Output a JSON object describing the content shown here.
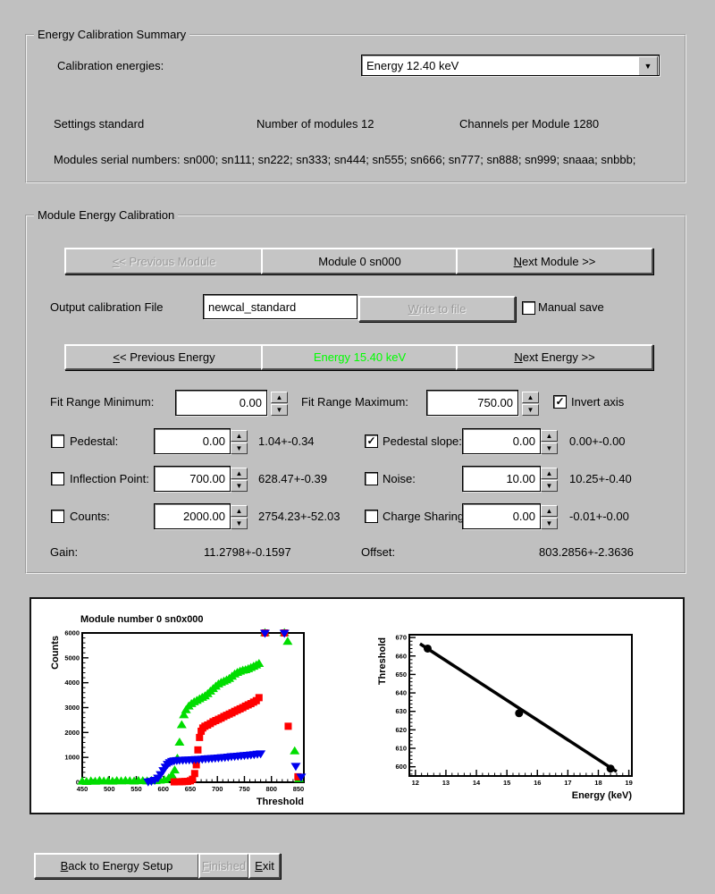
{
  "icons": {
    "up": "▲",
    "down": "▼",
    "dropdown": "▼"
  },
  "summary": {
    "title": "Energy Calibration Summary",
    "calibration_energies_label": "Calibration energies:",
    "energy_select_value": "Energy 12.40 keV",
    "settings_text": "Settings standard",
    "modules_text": "Number of modules 12",
    "channels_text": "Channels per Module 1280",
    "serials_text": "Modules serial numbers: sn000; sn111; sn222; sn333; sn444; sn555; sn666; sn777; sn888; sn999; snaaa; snbbb;"
  },
  "module_cal": {
    "title": "Module Energy Calibration",
    "prev_module": {
      "mn": "<",
      "rest": "< Previous Module"
    },
    "module_button": "Module 0 sn000",
    "next_module": {
      "mn": "N",
      "rest": "ext Module >>"
    },
    "output_file_label": "Output calibration File",
    "output_file_value": "newcal_standard",
    "write_button": {
      "mn": "W",
      "rest": "rite to file"
    },
    "manual_save_label": "Manual save",
    "manual_save_checked": "",
    "prev_energy": {
      "mn": "<",
      "rest": "< Previous Energy"
    },
    "energy_button": "Energy 15.40 keV",
    "energy_color": "#00ff00",
    "energy_style": "color:#00ff00",
    "next_energy": {
      "mn": "N",
      "rest": "ext Energy >>"
    },
    "fit_min_label": "Fit Range Minimum:",
    "fit_min_value": "0.00",
    "fit_max_label": "Fit Range Maximum:",
    "fit_max_value": "750.00",
    "invert_axis_label": "Invert axis",
    "invert_axis_checked": "✓",
    "params": [
      {
        "label": "Pedestal:",
        "check": "",
        "value": "0.00",
        "result": "1.04+-0.34"
      },
      {
        "label": "Pedestal slope:",
        "check": "✓",
        "value": "0.00",
        "result": "0.00+-0.00"
      },
      {
        "label": "Inflection Point:",
        "check": "",
        "value": "700.00",
        "result": "628.47+-0.39"
      },
      {
        "label": "Noise:",
        "check": "",
        "value": "10.00",
        "result": "10.25+-0.40"
      },
      {
        "label": "Counts:",
        "check": "",
        "value": "2000.00",
        "result": "2754.23+-52.03"
      },
      {
        "label": "Charge Sharing",
        "check": "",
        "value": "0.00",
        "result": "-0.01+-0.00"
      }
    ],
    "gain_label": "Gain:",
    "gain_value": "11.2798+-0.1597",
    "offset_label": "Offset:",
    "offset_value": "803.2856+-2.3636"
  },
  "footer": {
    "back": {
      "mn": "B",
      "rest": "ack to Energy Setup"
    },
    "finished": {
      "mn": "F",
      "rest": "inished"
    },
    "exit": {
      "mn": "E",
      "rest": "xit"
    }
  },
  "chart_data": [
    {
      "type": "scatter",
      "title": "Module number 0 sn0x000",
      "xlabel": "Threshold",
      "ylabel": "Counts",
      "xlim": [
        450,
        860
      ],
      "ylim": [
        0,
        6000
      ],
      "xticks": [
        450,
        500,
        550,
        600,
        650,
        700,
        750,
        800,
        850
      ],
      "yticks": [
        0,
        1000,
        2000,
        3000,
        4000,
        5000,
        6000
      ],
      "xminor": 10,
      "yminor": 200,
      "legend": "none",
      "grid": false,
      "series": [
        {
          "name": "scan-energy-1",
          "marker": "triangle-up",
          "color": "#00dd00",
          "size": 4.5,
          "points": [
            [
              450,
              30
            ],
            [
              458,
              20
            ],
            [
              466,
              40
            ],
            [
              474,
              25
            ],
            [
              482,
              60
            ],
            [
              490,
              35
            ],
            [
              498,
              45
            ],
            [
              506,
              30
            ],
            [
              514,
              55
            ],
            [
              522,
              40
            ],
            [
              530,
              60
            ],
            [
              538,
              45
            ],
            [
              546,
              35
            ],
            [
              554,
              60
            ],
            [
              562,
              50
            ],
            [
              570,
              40
            ],
            [
              578,
              60
            ],
            [
              586,
              50
            ],
            [
              594,
              70
            ],
            [
              602,
              90
            ],
            [
              610,
              160
            ],
            [
              616,
              280
            ],
            [
              621,
              480
            ],
            [
              626,
              950
            ],
            [
              630,
              1600
            ],
            [
              634,
              2300
            ],
            [
              638,
              2700
            ],
            [
              642,
              2900
            ],
            [
              647,
              3050
            ],
            [
              652,
              3150
            ],
            [
              657,
              3220
            ],
            [
              662,
              3280
            ],
            [
              667,
              3340
            ],
            [
              672,
              3400
            ],
            [
              677,
              3460
            ],
            [
              682,
              3550
            ],
            [
              687,
              3650
            ],
            [
              692,
              3750
            ],
            [
              697,
              3850
            ],
            [
              702,
              3940
            ],
            [
              707,
              4000
            ],
            [
              712,
              4050
            ],
            [
              717,
              4100
            ],
            [
              722,
              4160
            ],
            [
              727,
              4250
            ],
            [
              732,
              4340
            ],
            [
              737,
              4400
            ],
            [
              742,
              4450
            ],
            [
              747,
              4490
            ],
            [
              752,
              4510
            ],
            [
              757,
              4550
            ],
            [
              762,
              4600
            ],
            [
              767,
              4650
            ],
            [
              772,
              4700
            ],
            [
              777,
              4760
            ],
            [
              788,
              6000
            ],
            [
              824,
              6000
            ],
            [
              830,
              5650
            ],
            [
              843,
              1250
            ],
            [
              851,
              130
            ]
          ]
        },
        {
          "name": "scan-energy-2",
          "marker": "square",
          "color": "#ff0000",
          "size": 4,
          "points": [
            [
              620,
              15
            ],
            [
              625,
              18
            ],
            [
              630,
              20
            ],
            [
              635,
              25
            ],
            [
              640,
              30
            ],
            [
              645,
              35
            ],
            [
              650,
              60
            ],
            [
              654,
              120
            ],
            [
              658,
              350
            ],
            [
              661,
              700
            ],
            [
              664,
              1300
            ],
            [
              667,
              1800
            ],
            [
              670,
              2050
            ],
            [
              673,
              2180
            ],
            [
              677,
              2250
            ],
            [
              682,
              2300
            ],
            [
              687,
              2360
            ],
            [
              692,
              2430
            ],
            [
              697,
              2480
            ],
            [
              702,
              2530
            ],
            [
              707,
              2580
            ],
            [
              712,
              2640
            ],
            [
              717,
              2690
            ],
            [
              722,
              2740
            ],
            [
              727,
              2790
            ],
            [
              732,
              2850
            ],
            [
              737,
              2900
            ],
            [
              742,
              2950
            ],
            [
              747,
              3000
            ],
            [
              752,
              3060
            ],
            [
              757,
              3110
            ],
            [
              762,
              3160
            ],
            [
              767,
              3220
            ],
            [
              772,
              3280
            ],
            [
              777,
              3400
            ],
            [
              788,
              6000
            ],
            [
              824,
              6000
            ],
            [
              831,
              2250
            ],
            [
              849,
              220
            ]
          ]
        },
        {
          "name": "scan-energy-3",
          "marker": "triangle-down",
          "color": "#0000ee",
          "size": 4.5,
          "points": [
            [
              572,
              25
            ],
            [
              578,
              50
            ],
            [
              584,
              90
            ],
            [
              590,
              180
            ],
            [
              595,
              320
            ],
            [
              600,
              480
            ],
            [
              604,
              620
            ],
            [
              608,
              730
            ],
            [
              612,
              800
            ],
            [
              616,
              850
            ],
            [
              620,
              870
            ],
            [
              625,
              885
            ],
            [
              630,
              895
            ],
            [
              636,
              900
            ],
            [
              642,
              905
            ],
            [
              648,
              905
            ],
            [
              654,
              915
            ],
            [
              660,
              925
            ],
            [
              666,
              930
            ],
            [
              672,
              940
            ],
            [
              678,
              950
            ],
            [
              684,
              960
            ],
            [
              690,
              970
            ],
            [
              696,
              980
            ],
            [
              702,
              990
            ],
            [
              708,
              1000
            ],
            [
              714,
              1010
            ],
            [
              720,
              1025
            ],
            [
              726,
              1040
            ],
            [
              732,
              1050
            ],
            [
              738,
              1060
            ],
            [
              744,
              1075
            ],
            [
              750,
              1085
            ],
            [
              756,
              1095
            ],
            [
              762,
              1110
            ],
            [
              768,
              1125
            ],
            [
              774,
              1140
            ],
            [
              780,
              1155
            ],
            [
              788,
              6000
            ],
            [
              824,
              6000
            ],
            [
              845,
              650
            ],
            [
              855,
              220
            ]
          ]
        }
      ]
    },
    {
      "type": "scatter",
      "title": "",
      "xlabel": "Energy (keV)",
      "ylabel": "Threshold",
      "xlim": [
        11.8,
        19.1
      ],
      "ylim": [
        595,
        671.5
      ],
      "xticks": [
        12,
        13,
        14,
        15,
        16,
        17,
        18,
        19
      ],
      "yticks": [
        600,
        610,
        620,
        630,
        640,
        650,
        660,
        670
      ],
      "xminor": 0.2,
      "yminor": 2,
      "legend": "none",
      "grid": false,
      "series": [
        {
          "name": "threshold-vs-energy",
          "marker": "circle",
          "color": "#000000",
          "size": 4.5,
          "points": [
            [
              12.4,
              664
            ],
            [
              15.4,
              629
            ],
            [
              18.4,
              599
            ]
          ],
          "fit_line": [
            [
              12.15,
              666.6
            ],
            [
              18.6,
              597.4
            ]
          ]
        }
      ]
    }
  ]
}
